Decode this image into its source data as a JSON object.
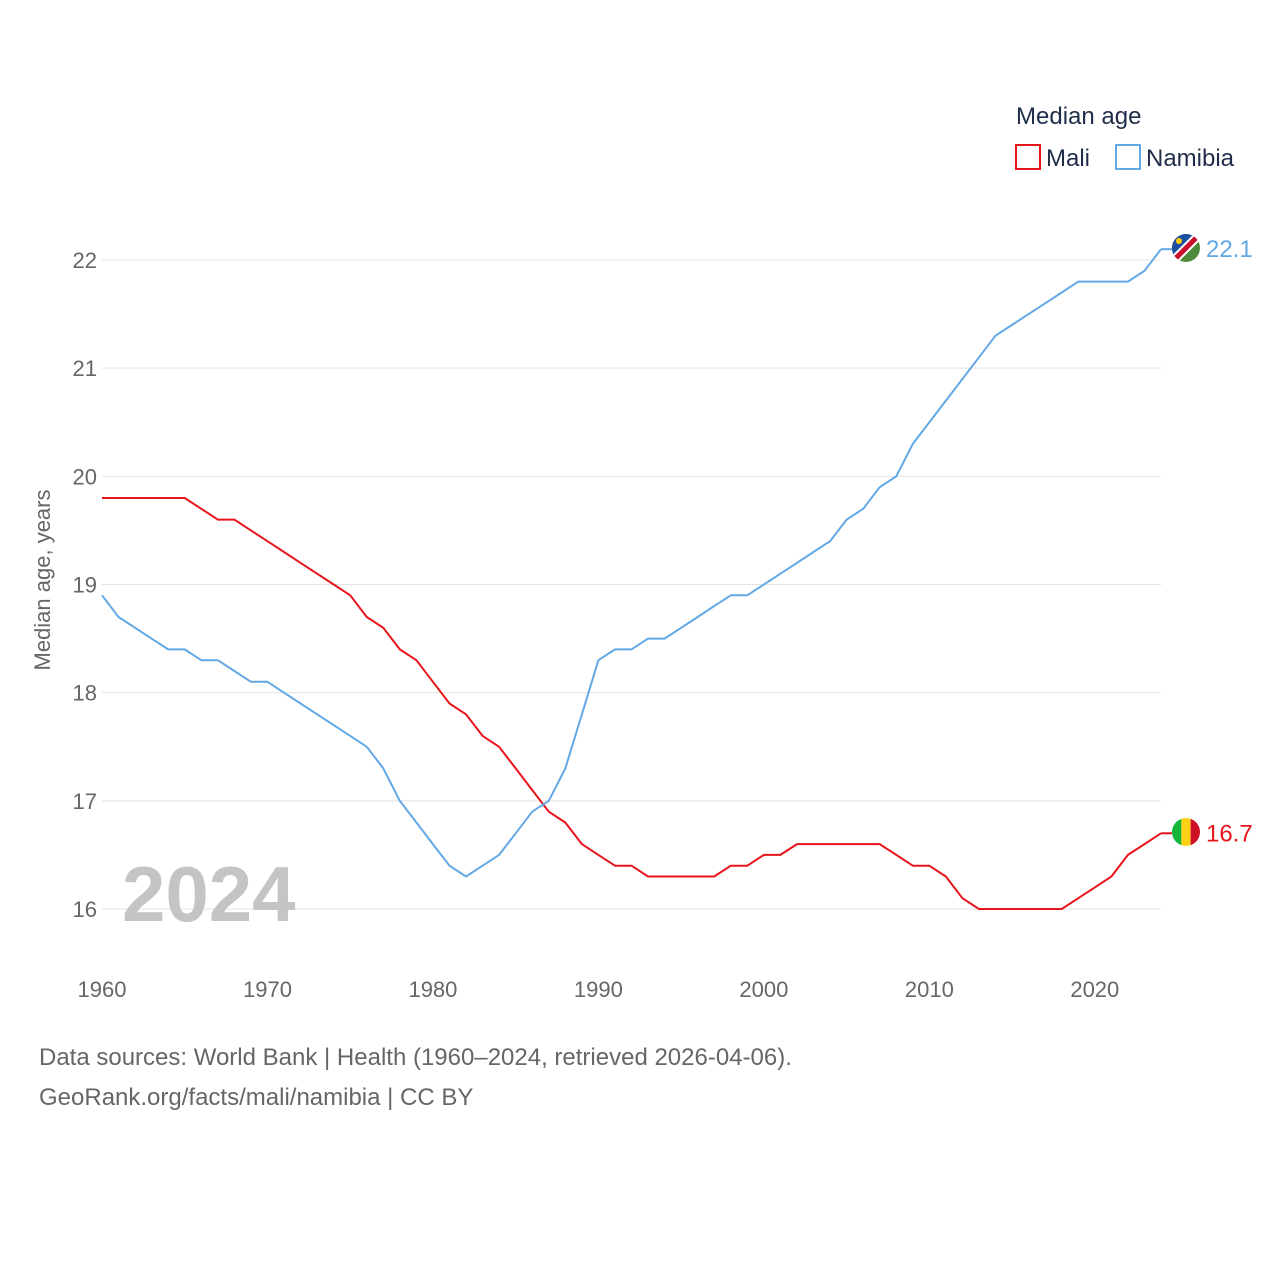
{
  "chart_data": {
    "type": "line",
    "title": "Median age",
    "ylabel": "Median age, years",
    "xlabel": "",
    "xlim": [
      1960,
      2024
    ],
    "ylim": [
      16,
      22
    ],
    "yticks": [
      16,
      17,
      18,
      19,
      20,
      21,
      22
    ],
    "xticks": [
      1960,
      1970,
      1980,
      1990,
      2000,
      2010,
      2020
    ],
    "year_marker": "2024",
    "legend_placement": "top-right",
    "x": [
      1960,
      1961,
      1962,
      1963,
      1964,
      1965,
      1966,
      1967,
      1968,
      1969,
      1970,
      1971,
      1972,
      1973,
      1974,
      1975,
      1976,
      1977,
      1978,
      1979,
      1980,
      1981,
      1982,
      1983,
      1984,
      1985,
      1986,
      1987,
      1988,
      1989,
      1990,
      1991,
      1992,
      1993,
      1994,
      1995,
      1996,
      1997,
      1998,
      1999,
      2000,
      2001,
      2002,
      2003,
      2004,
      2005,
      2006,
      2007,
      2008,
      2009,
      2010,
      2011,
      2012,
      2013,
      2014,
      2015,
      2016,
      2017,
      2018,
      2019,
      2020,
      2021,
      2022,
      2023,
      2024
    ],
    "series": [
      {
        "name": "Mali",
        "color": "#e8141c",
        "end_label": "16.7",
        "values": [
          19.8,
          19.8,
          19.8,
          19.8,
          19.8,
          19.8,
          19.7,
          19.6,
          19.6,
          19.5,
          19.4,
          19.3,
          19.2,
          19.1,
          19.0,
          18.9,
          18.7,
          18.6,
          18.4,
          18.3,
          18.1,
          17.9,
          17.8,
          17.6,
          17.5,
          17.3,
          17.1,
          16.9,
          16.8,
          16.6,
          16.5,
          16.4,
          16.4,
          16.3,
          16.3,
          16.3,
          16.3,
          16.3,
          16.4,
          16.4,
          16.5,
          16.5,
          16.6,
          16.6,
          16.6,
          16.6,
          16.6,
          16.6,
          16.5,
          16.4,
          16.4,
          16.3,
          16.1,
          16.0,
          16.0,
          16.0,
          16.0,
          16.0,
          16.0,
          16.1,
          16.2,
          16.3,
          16.5,
          16.6,
          16.7
        ]
      },
      {
        "name": "Namibia",
        "color": "#62a8e5",
        "end_label": "22.1",
        "values": [
          18.9,
          18.7,
          18.6,
          18.5,
          18.4,
          18.4,
          18.3,
          18.3,
          18.2,
          18.1,
          18.1,
          18.0,
          17.9,
          17.8,
          17.7,
          17.6,
          17.5,
          17.3,
          17.0,
          16.8,
          16.6,
          16.4,
          16.3,
          16.4,
          16.5,
          16.7,
          16.9,
          17.0,
          17.3,
          17.8,
          18.3,
          18.4,
          18.4,
          18.5,
          18.5,
          18.6,
          18.7,
          18.8,
          18.9,
          18.9,
          19.0,
          19.1,
          19.2,
          19.3,
          19.4,
          19.6,
          19.7,
          19.9,
          20.0,
          20.3,
          20.5,
          20.7,
          20.9,
          21.1,
          21.3,
          21.4,
          21.5,
          21.6,
          21.7,
          21.8,
          21.8,
          21.8,
          21.8,
          21.9,
          22.1
        ]
      }
    ]
  },
  "footer": {
    "sources_line": "Data sources: World Bank | Health (1960–2024, retrieved 2026-04-06).",
    "link_line": "GeoRank.org/facts/mali/namibia | CC BY"
  }
}
